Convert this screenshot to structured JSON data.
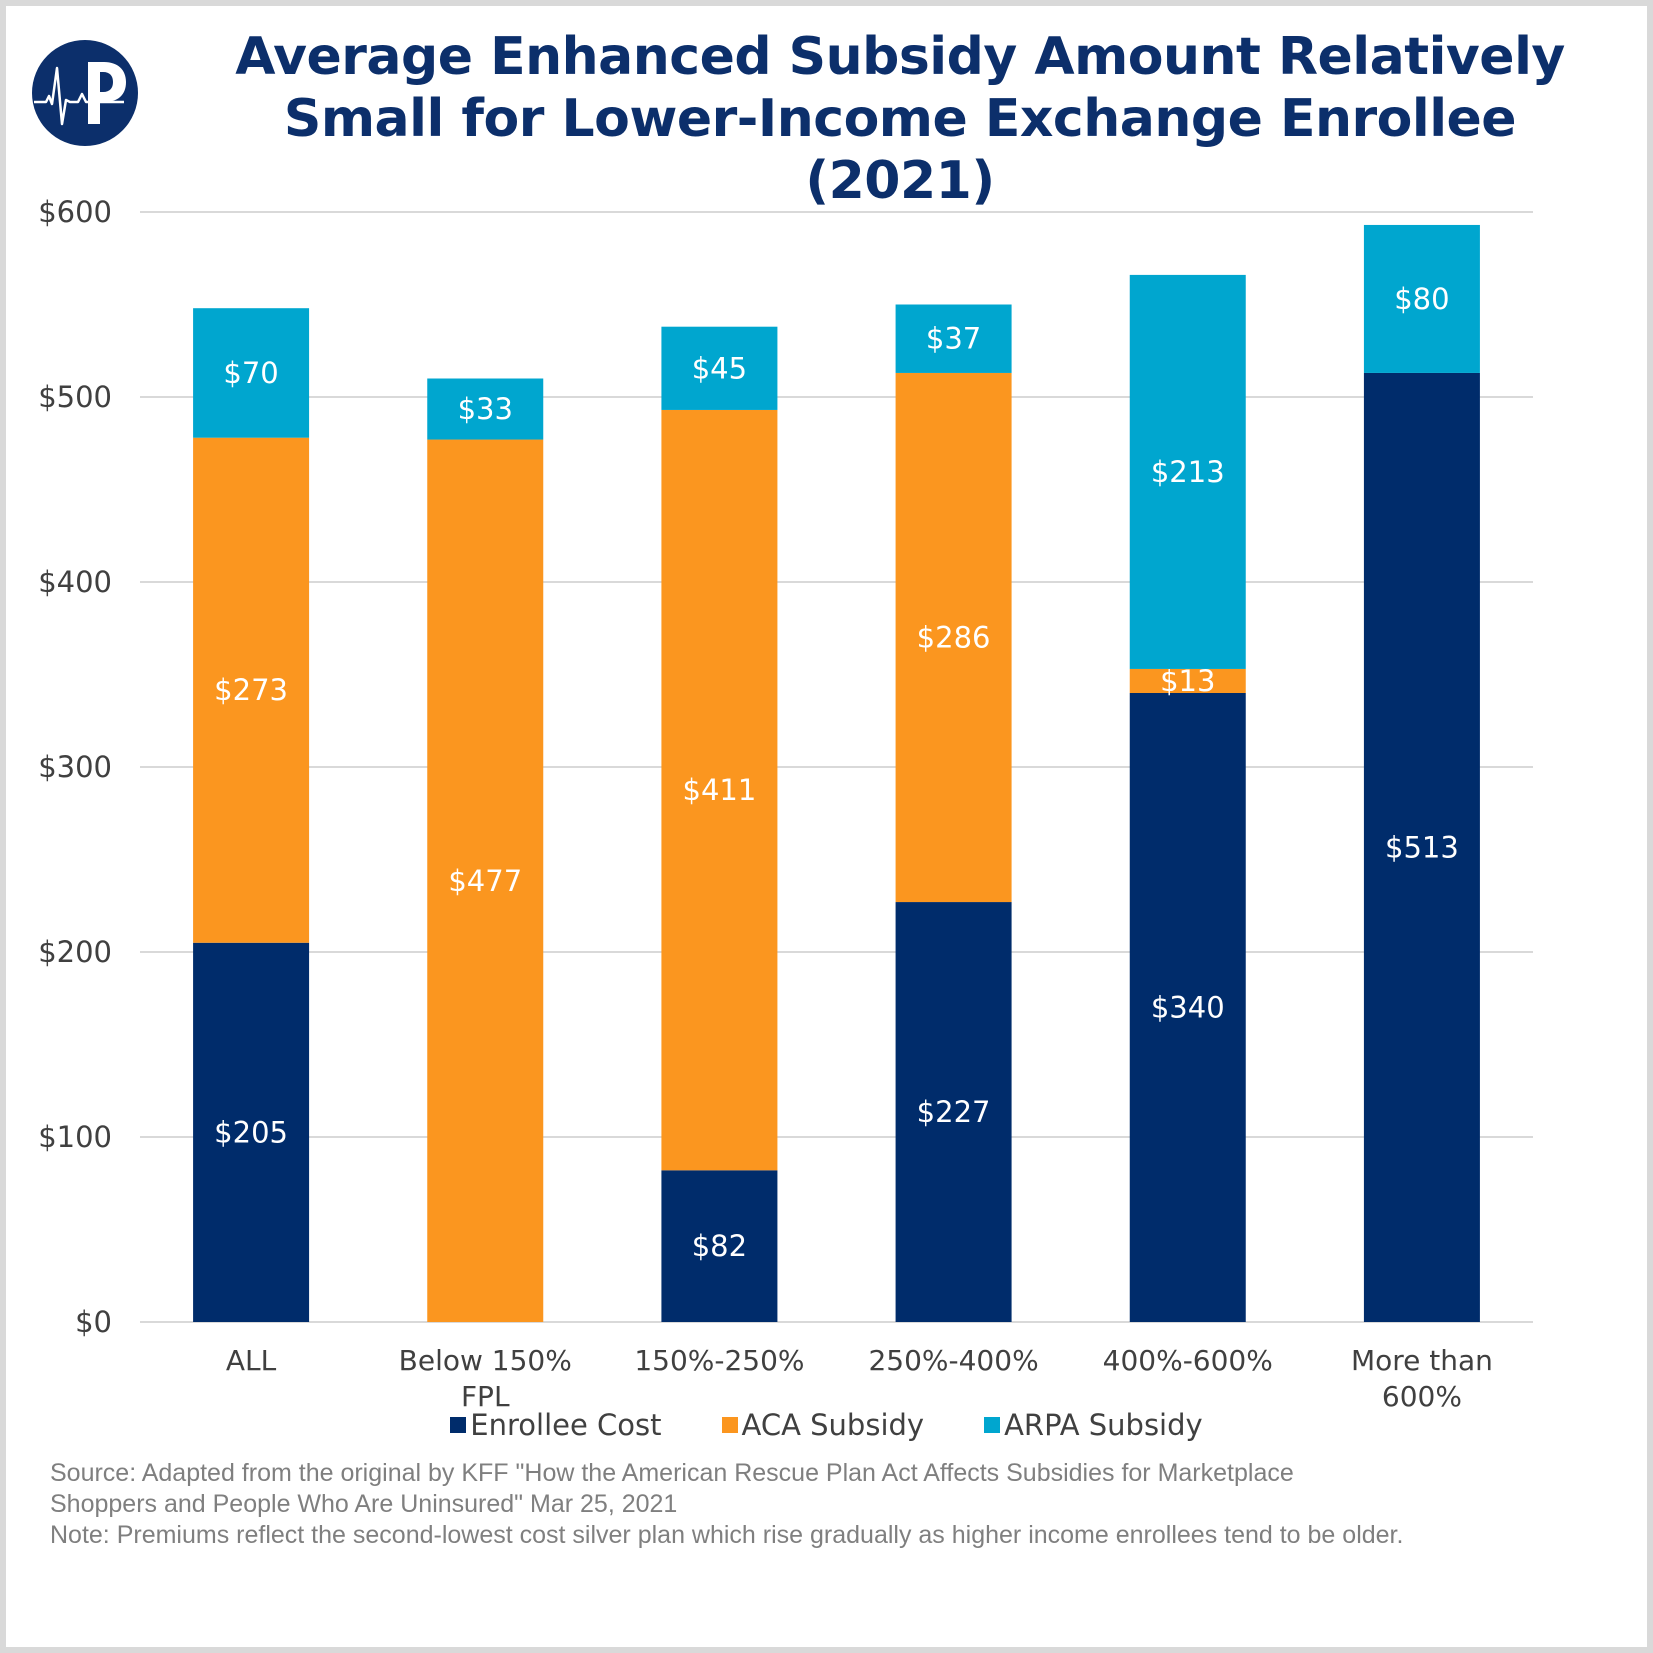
{
  "header": {
    "title_line1": "Average Enhanced Subsidy Amount Relatively",
    "title_line2": "Small for Lower-Income Exchange Enrollee (2021)",
    "logo": "heartbeat-p-logo"
  },
  "colors": {
    "enrollee_cost": "#002c6b",
    "aca_subsidy": "#fb961f",
    "arpa_subsidy": "#00a6cf",
    "title": "#0c2f6b",
    "gridline": "#d9d9d9"
  },
  "chart_data": {
    "type": "bar",
    "stacked": true,
    "title": "Average Enhanced Subsidy Amount Relatively Small for Lower-Income Exchange Enrollee (2021)",
    "xlabel": "",
    "ylabel": "",
    "ylim": [
      0,
      600
    ],
    "yticks": [
      0,
      100,
      200,
      300,
      400,
      500,
      600
    ],
    "ytick_labels": [
      "$0",
      "$100",
      "$200",
      "$300",
      "$400",
      "$500",
      "$600"
    ],
    "grid": true,
    "legend_position": "bottom",
    "categories": [
      [
        "ALL"
      ],
      [
        "Below 150%",
        "FPL"
      ],
      [
        "150%-250%"
      ],
      [
        "250%-400%"
      ],
      [
        "400%-600%"
      ],
      [
        "More than",
        "600%"
      ]
    ],
    "series": [
      {
        "name": "Enrollee Cost",
        "color": "#002c6b",
        "values": [
          205,
          0,
          82,
          227,
          340,
          513
        ],
        "labels": [
          "$205",
          "",
          "$82",
          "$227",
          "$340",
          "$513"
        ]
      },
      {
        "name": "ACA Subsidy",
        "color": "#fb961f",
        "values": [
          273,
          477,
          411,
          286,
          13,
          0
        ],
        "labels": [
          "$273",
          "$477",
          "$411",
          "$286",
          "$13",
          ""
        ]
      },
      {
        "name": "ARPA Subsidy",
        "color": "#00a6cf",
        "values": [
          70,
          33,
          45,
          37,
          213,
          80
        ],
        "labels": [
          "$70",
          "$33",
          "$45",
          "$37",
          "$213",
          "$80"
        ]
      }
    ]
  },
  "legend": [
    {
      "label": "Enrollee Cost",
      "color": "#002c6b"
    },
    {
      "label": "ACA Subsidy",
      "color": "#fb961f"
    },
    {
      "label": "ARPA Subsidy",
      "color": "#00a6cf"
    }
  ],
  "footer": {
    "source_line1": "Source:  Adapted from the original by KFF \"How the American Rescue Plan Act Affects Subsidies for Marketplace",
    "source_line2": "Shoppers and People Who Are Uninsured\" Mar 25, 2021",
    "note": "Note: Premiums reflect the second-lowest cost silver plan which rise gradually as higher income enrollees tend to be older."
  }
}
